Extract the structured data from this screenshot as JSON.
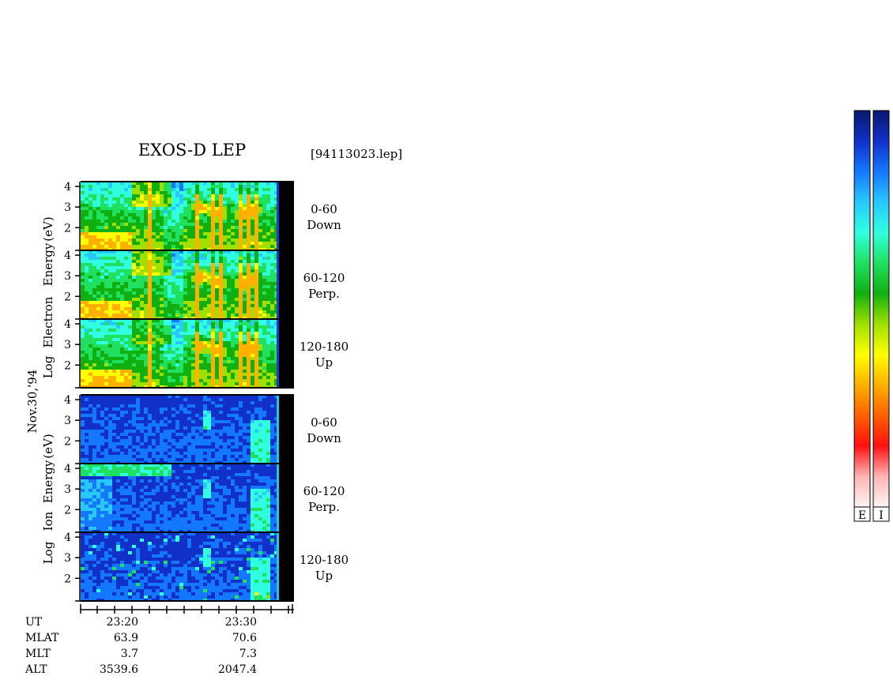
{
  "header": {
    "title": "EXOS-D LEP",
    "file": "[94113023.lep]"
  },
  "date_label": "Nov.30,'94",
  "chart_data": {
    "type": "heatmap",
    "title": "EXOS-D LEP",
    "yscale": "log10 energy (eV)",
    "ylim": [
      1,
      4
    ],
    "y_ticks": [
      "4",
      "3",
      "2"
    ],
    "x_ticks": [
      "23:20",
      "23:30"
    ],
    "groups": [
      {
        "name": "electron",
        "ylabel": [
          "Log",
          "Electron",
          "Energy",
          "(eV)"
        ],
        "panels": [
          {
            "pitch": "0-60",
            "direction": "Down"
          },
          {
            "pitch": "60-120",
            "direction": "Perp."
          },
          {
            "pitch": "120-180",
            "direction": "Up"
          }
        ]
      },
      {
        "name": "ion",
        "ylabel": [
          "Log",
          "Ion",
          "Energy",
          "(eV)"
        ],
        "panels": [
          {
            "pitch": "0-60",
            "direction": "Down"
          },
          {
            "pitch": "60-120",
            "direction": "Perp."
          },
          {
            "pitch": "120-180",
            "direction": "Up"
          }
        ]
      }
    ],
    "colorbars": [
      {
        "label": "E"
      },
      {
        "label": "I"
      }
    ],
    "colormap": [
      "#0a1870",
      "#1030c8",
      "#1478ff",
      "#28c8ff",
      "#30ffe0",
      "#20e060",
      "#10b010",
      "#a0e000",
      "#ffff00",
      "#ffb000",
      "#ff6000",
      "#ff1010",
      "#ffb4b4",
      "#fff4f4"
    ]
  },
  "ephemeris": {
    "labels": [
      "UT",
      "MLAT",
      "MLT",
      "ALT"
    ],
    "columns": [
      {
        "UT": "23:20",
        "MLAT": "63.9",
        "MLT": "3.7",
        "ALT": "3539.6"
      },
      {
        "UT": "23:30",
        "MLAT": "70.6",
        "MLT": "7.3",
        "ALT": "2047.4"
      }
    ]
  }
}
